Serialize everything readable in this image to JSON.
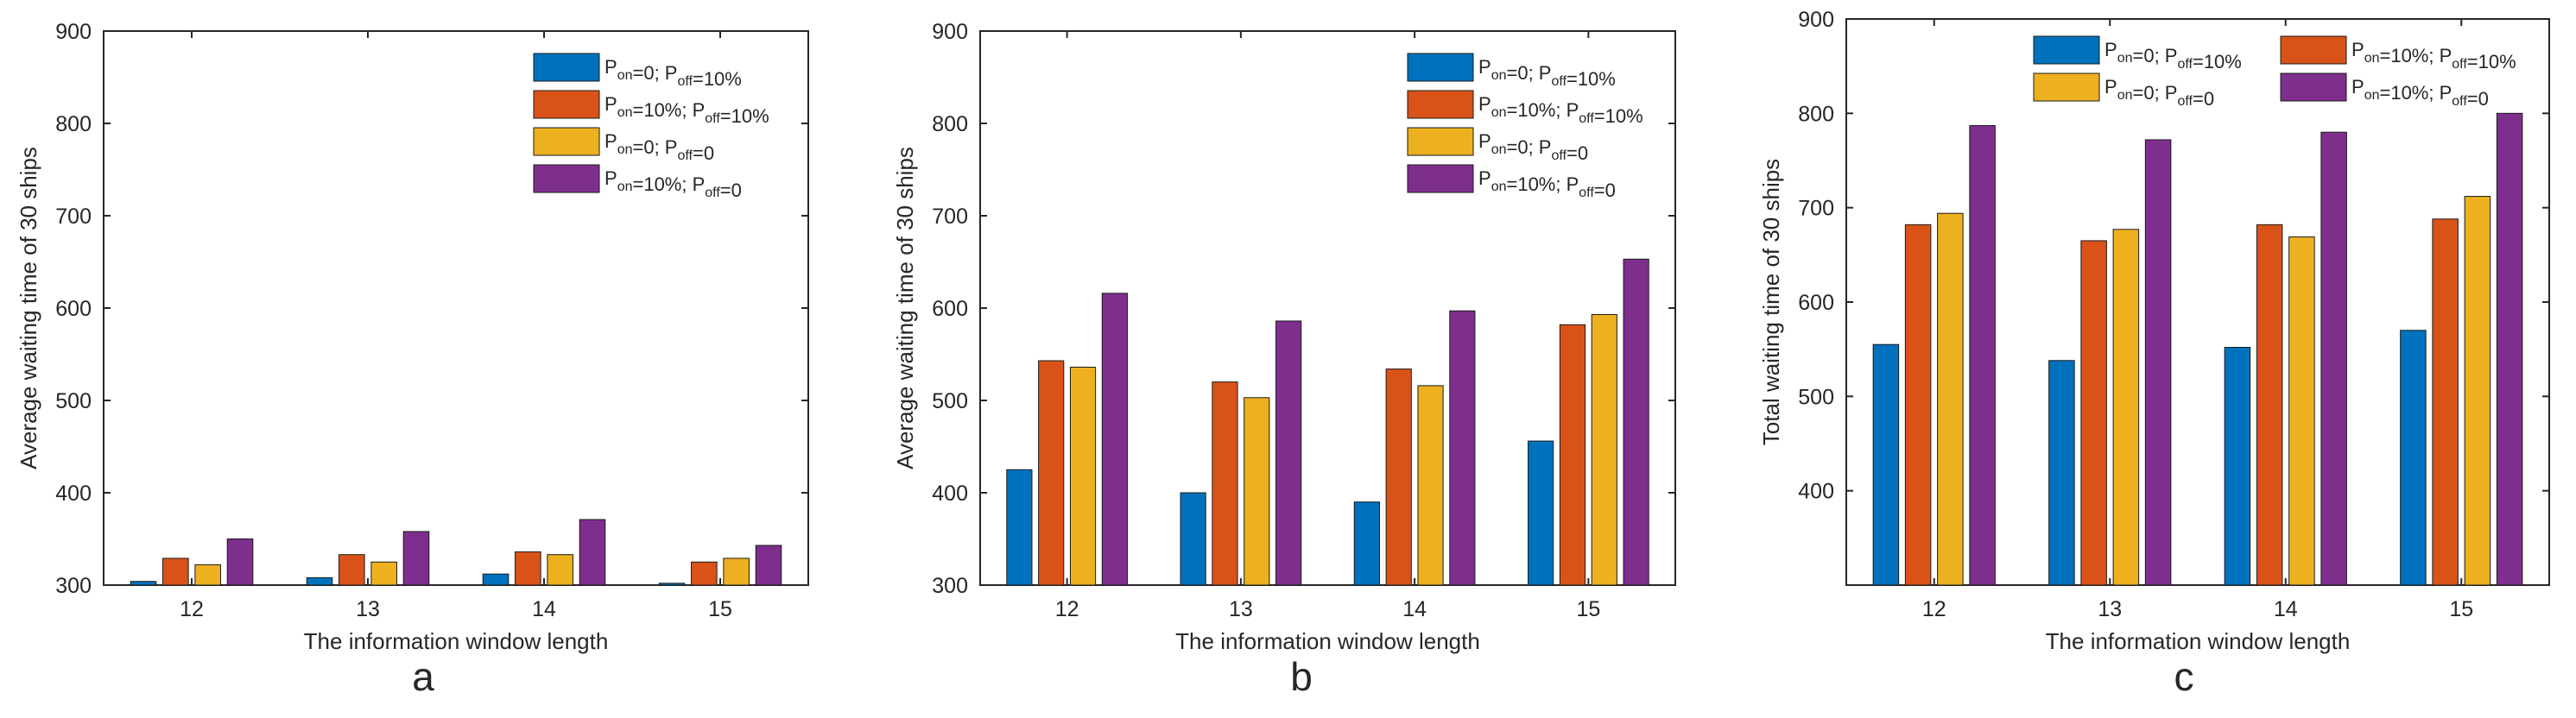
{
  "colors": {
    "s1": "#0072BD",
    "s2": "#D95319",
    "s3": "#EDB120",
    "s4": "#7E2F8E"
  },
  "chart_data": [
    {
      "type": "bar",
      "panel_label": "a",
      "title": "",
      "xlabel": "The information window length",
      "ylabel": "Average waiting time of 30 ships",
      "categories": [
        "12",
        "13",
        "14",
        "15"
      ],
      "ylim": [
        300,
        900
      ],
      "yticks": [
        300,
        400,
        500,
        600,
        700,
        800,
        900
      ],
      "legend_position": "top-right",
      "legend_layout": "one-column",
      "series": [
        {
          "name_main": "P",
          "sub1": "on",
          "mid": "=0; P",
          "sub2": "off",
          "tail": "=10%",
          "color_key": "s1",
          "values": [
            304,
            308,
            312,
            302
          ]
        },
        {
          "name_main": "P",
          "sub1": "on",
          "mid": "=10%; P",
          "sub2": "off",
          "tail": "=10%",
          "color_key": "s2",
          "values": [
            329,
            333,
            336,
            325
          ]
        },
        {
          "name_main": "P",
          "sub1": "on",
          "mid": "=0; P",
          "sub2": "off",
          "tail": "=0",
          "color_key": "s3",
          "values": [
            322,
            325,
            333,
            329
          ]
        },
        {
          "name_main": "P",
          "sub1": "on",
          "mid": "=10%; P",
          "sub2": "off",
          "tail": "=0",
          "color_key": "s4",
          "values": [
            350,
            358,
            371,
            343
          ]
        }
      ]
    },
    {
      "type": "bar",
      "panel_label": "b",
      "title": "",
      "xlabel": "The information window length",
      "ylabel": "Average waiting time of 30 ships",
      "categories": [
        "12",
        "13",
        "14",
        "15"
      ],
      "ylim": [
        300,
        900
      ],
      "yticks": [
        300,
        400,
        500,
        600,
        700,
        800,
        900
      ],
      "legend_position": "top-right",
      "legend_layout": "one-column",
      "series": [
        {
          "name_main": "P",
          "sub1": "on",
          "mid": "=0; P",
          "sub2": "off",
          "tail": "=10%",
          "color_key": "s1",
          "values": [
            425,
            400,
            390,
            456
          ]
        },
        {
          "name_main": "P",
          "sub1": "on",
          "mid": "=10%; P",
          "sub2": "off",
          "tail": "=10%",
          "color_key": "s2",
          "values": [
            543,
            520,
            534,
            582
          ]
        },
        {
          "name_main": "P",
          "sub1": "on",
          "mid": "=0; P",
          "sub2": "off",
          "tail": "=0",
          "color_key": "s3",
          "values": [
            536,
            503,
            516,
            593
          ]
        },
        {
          "name_main": "P",
          "sub1": "on",
          "mid": "=10%; P",
          "sub2": "off",
          "tail": "=0",
          "color_key": "s4",
          "values": [
            616,
            586,
            597,
            653
          ]
        }
      ]
    },
    {
      "type": "bar",
      "panel_label": "c",
      "title": "",
      "xlabel": "The information window length",
      "ylabel": "Total waiting time of 30 ships",
      "categories": [
        "12",
        "13",
        "14",
        "15"
      ],
      "ylim": [
        300,
        900
      ],
      "yticks": [
        400,
        500,
        600,
        700,
        800,
        900
      ],
      "legend_position": "top-right",
      "legend_layout": "two-column",
      "series": [
        {
          "name_main": "P",
          "sub1": "on",
          "mid": "=0; P",
          "sub2": "off",
          "tail": "=10%",
          "color_key": "s1",
          "values": [
            555,
            538,
            552,
            570
          ]
        },
        {
          "name_main": "P",
          "sub1": "on",
          "mid": "=10%; P",
          "sub2": "off",
          "tail": "=10%",
          "color_key": "s2",
          "values": [
            682,
            665,
            682,
            688
          ]
        },
        {
          "name_main": "P",
          "sub1": "on",
          "mid": "=0; P",
          "sub2": "off",
          "tail": "=0",
          "color_key": "s3",
          "values": [
            694,
            677,
            669,
            712
          ]
        },
        {
          "name_main": "P",
          "sub1": "on",
          "mid": "=10%; P",
          "sub2": "off",
          "tail": "=0",
          "color_key": "s4",
          "values": [
            787,
            772,
            780,
            800
          ]
        }
      ]
    }
  ]
}
